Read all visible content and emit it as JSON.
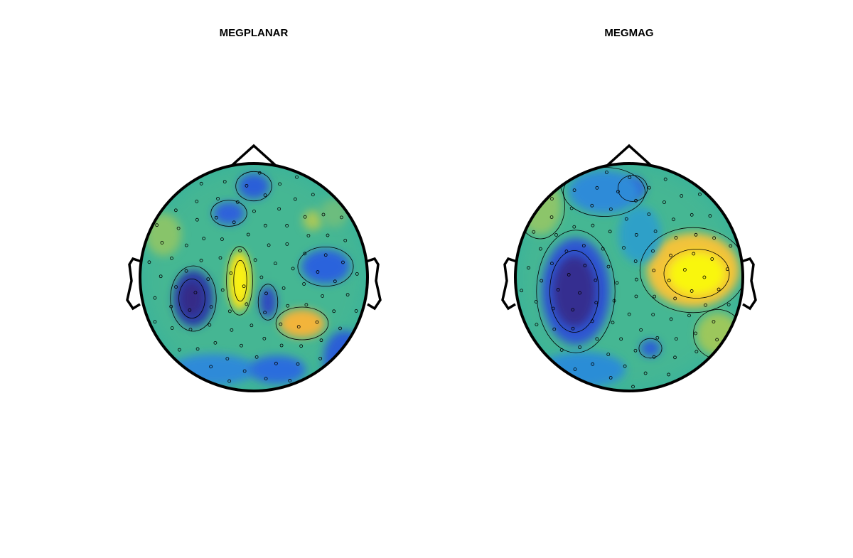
{
  "chart_data": [
    {
      "type": "topoplot",
      "title": "MEGPLANAR"
    },
    {
      "type": "topoplot",
      "title": "MEGMAG"
    }
  ]
}
